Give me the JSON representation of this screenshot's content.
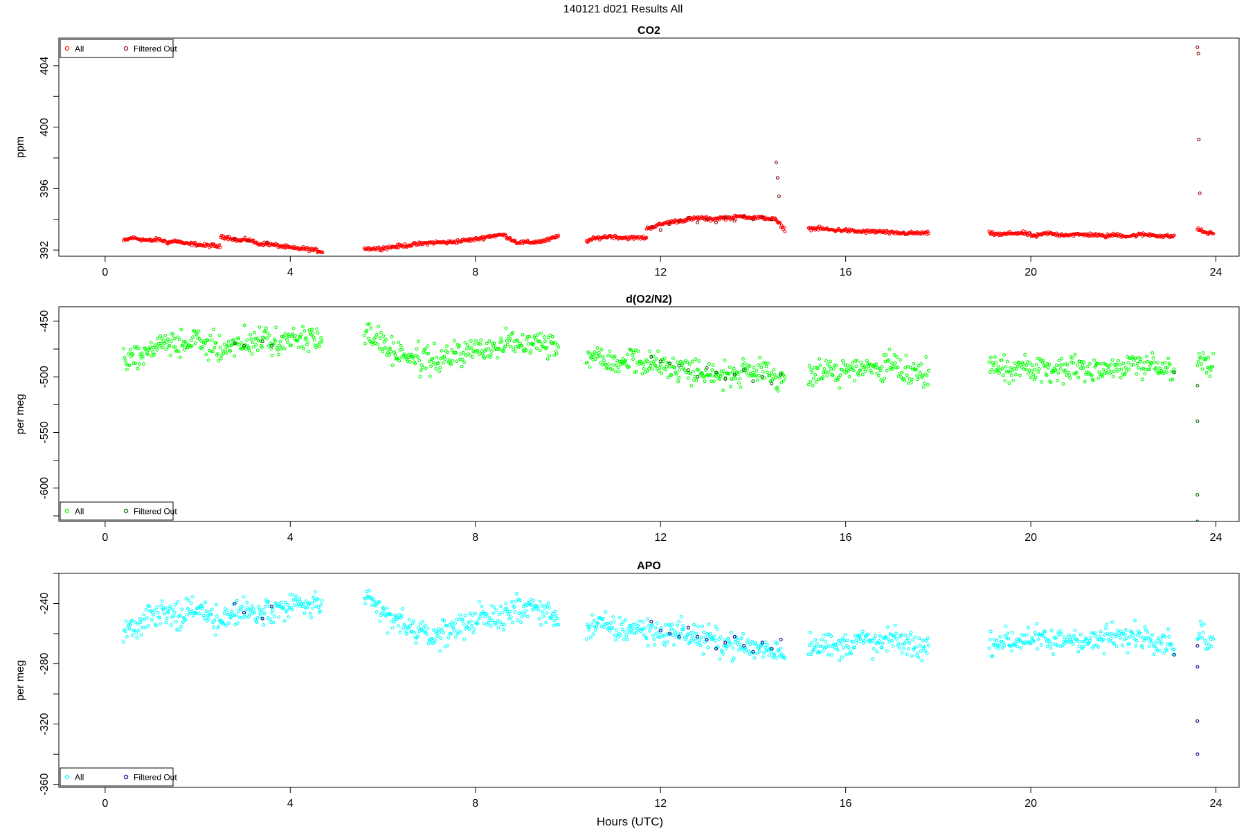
{
  "page_title": "140121   d021   Results All",
  "x_axis_label": "Hours (UTC)",
  "colors": {
    "co2_all": "#ff0000",
    "co2_filtered": "#8b0000",
    "o2_all": "#00ff00",
    "o2_filtered": "#006400",
    "apo_all": "#00ffff",
    "apo_filtered": "#00008b"
  },
  "chart_data": [
    {
      "type": "scatter",
      "title": "CO2",
      "ylabel": "ppm",
      "xlim": [
        -1,
        24.5
      ],
      "ylim": [
        391.6,
        405.8
      ],
      "x_ticks": [
        0,
        4,
        8,
        12,
        16,
        20,
        24
      ],
      "y_ticks": [
        392,
        396,
        400,
        404
      ],
      "legend_position": "top-left",
      "legend": [
        "All",
        "Filtered Out"
      ],
      "series": [
        {
          "name": "All",
          "segments": [
            {
              "x_start": 0.4,
              "x_end": 2.5,
              "y": [
                392.6,
                392.8,
                392.7,
                392.6,
                392.7,
                392.5,
                392.6,
                392.4,
                392.4,
                392.3,
                392.3,
                392.2
              ]
            },
            {
              "x_start": 2.5,
              "x_end": 4.7,
              "y": [
                392.9,
                392.8,
                392.6,
                392.7,
                392.4,
                392.4,
                392.3,
                392.2,
                392.1,
                392.1,
                392.0,
                391.9
              ]
            },
            {
              "x_start": 5.6,
              "x_end": 9.8,
              "y": [
                392.1,
                392.1,
                392.2,
                392.3,
                392.4,
                392.5,
                392.5,
                392.6,
                392.7,
                392.9,
                393.0,
                392.5,
                392.5,
                392.6,
                392.9
              ]
            },
            {
              "x_start": 10.4,
              "x_end": 11.7,
              "y": [
                392.6,
                392.8,
                392.9,
                392.8,
                392.8,
                392.8
              ]
            },
            {
              "x_start": 11.7,
              "x_end": 14.7,
              "y": [
                393.4,
                393.6,
                393.8,
                393.9,
                394.0,
                394.1,
                394.0,
                394.1,
                394.1,
                394.2,
                394.1,
                394.1,
                394.0,
                393.3
              ]
            },
            {
              "x_start": 15.2,
              "x_end": 17.8,
              "y": [
                393.4,
                393.4,
                393.3,
                393.3,
                393.2,
                393.2,
                393.2,
                393.1,
                393.1,
                393.1,
                393.1
              ]
            },
            {
              "x_start": 19.1,
              "x_end": 23.1,
              "y": [
                393.1,
                393.0,
                393.1,
                393.1,
                392.9,
                393.1,
                393.0,
                393.0,
                393.0,
                393.0,
                392.9,
                393.0,
                392.9,
                393.0,
                393.0,
                392.9,
                392.9
              ]
            },
            {
              "x_start": 23.6,
              "x_end": 23.95,
              "y": [
                393.4,
                393.2,
                393.1,
                393.1
              ]
            }
          ]
        },
        {
          "name": "Filtered Out",
          "points": [
            [
              11.8,
              393.5
            ],
            [
              12.0,
              393.3
            ],
            [
              12.2,
              393.7
            ],
            [
              12.4,
              393.9
            ],
            [
              12.6,
              394.1
            ],
            [
              12.8,
              393.8
            ],
            [
              13.0,
              394.0
            ],
            [
              13.2,
              393.8
            ],
            [
              13.4,
              394.1
            ],
            [
              13.6,
              393.9
            ],
            [
              13.8,
              394.2
            ],
            [
              14.0,
              394.0
            ],
            [
              14.2,
              394.1
            ],
            [
              14.4,
              394.0
            ],
            [
              2.8,
              392.7
            ],
            [
              3.1,
              392.6
            ],
            [
              3.5,
              392.5
            ],
            [
              14.5,
              397.7
            ],
            [
              14.53,
              396.7
            ],
            [
              14.56,
              395.5
            ],
            [
              23.6,
              405.2
            ],
            [
              23.62,
              404.8
            ],
            [
              23.63,
              399.2
            ],
            [
              23.65,
              395.7
            ]
          ]
        }
      ]
    },
    {
      "type": "scatter",
      "title": "d(O2/N2)",
      "ylabel": "per meg",
      "xlim": [
        -1,
        24.5
      ],
      "ylim": [
        -630,
        -437
      ],
      "x_ticks": [
        0,
        4,
        8,
        12,
        16,
        20,
        24
      ],
      "y_ticks": [
        -600,
        -550,
        -500,
        -450
      ],
      "legend_position": "bottom-left",
      "legend": [
        "All",
        "Filtered Out"
      ],
      "series": [
        {
          "name": "All",
          "segments": [
            {
              "x_start": 0.4,
              "x_end": 4.7,
              "y": [
                -485,
                -480,
                -476,
                -470,
                -472,
                -468,
                -470,
                -475,
                -472,
                -468,
                -470,
                -466,
                -468,
                -465,
                -467,
                -464
              ]
            },
            {
              "x_start": 5.6,
              "x_end": 9.8,
              "y": [
                -460,
                -466,
                -475,
                -480,
                -484,
                -486,
                -484,
                -480,
                -478,
                -476,
                -474,
                -470,
                -468,
                -466,
                -470,
                -474
              ]
            },
            {
              "x_start": 10.4,
              "x_end": 14.7,
              "y": [
                -480,
                -482,
                -486,
                -484,
                -488,
                -490,
                -492,
                -494,
                -496,
                -498,
                -498,
                -496,
                -500,
                -500
              ]
            },
            {
              "x_start": 15.2,
              "x_end": 17.8,
              "y": [
                -498,
                -496,
                -494,
                -496,
                -492,
                -494,
                -490,
                -494,
                -496,
                -498
              ]
            },
            {
              "x_start": 19.1,
              "x_end": 23.1,
              "y": [
                -494,
                -492,
                -494,
                -490,
                -492,
                -494,
                -492,
                -490,
                -494,
                -492,
                -490,
                -492,
                -488,
                -490,
                -492,
                -494
              ]
            },
            {
              "x_start": 23.6,
              "x_end": 23.95,
              "y": [
                -490,
                -480,
                -495,
                -488
              ]
            }
          ]
        },
        {
          "name": "Filtered Out",
          "points": [
            [
              2.8,
              -470
            ],
            [
              3.0,
              -472
            ],
            [
              3.4,
              -468
            ],
            [
              3.6,
              -472
            ],
            [
              11.8,
              -482
            ],
            [
              12.0,
              -486
            ],
            [
              12.2,
              -488
            ],
            [
              12.4,
              -490
            ],
            [
              12.6,
              -494
            ],
            [
              12.8,
              -500
            ],
            [
              13.0,
              -492
            ],
            [
              13.2,
              -496
            ],
            [
              13.4,
              -502
            ],
            [
              13.6,
              -498
            ],
            [
              13.8,
              -494
            ],
            [
              14.0,
              -504
            ],
            [
              14.2,
              -500
            ],
            [
              14.4,
              -506
            ],
            [
              14.6,
              -498
            ],
            [
              23.1,
              -496
            ],
            [
              23.6,
              -508
            ],
            [
              23.6,
              -540
            ],
            [
              23.6,
              -606
            ],
            [
              23.6,
              -630
            ]
          ]
        }
      ]
    },
    {
      "type": "scatter",
      "title": "APO",
      "ylabel": "per meg",
      "xlim": [
        -1,
        24.5
      ],
      "ylim": [
        -362,
        -220
      ],
      "x_ticks": [
        0,
        4,
        8,
        12,
        16,
        20,
        24
      ],
      "y_ticks": [
        -360,
        -320,
        -280,
        -240
      ],
      "legend_position": "bottom-left",
      "legend": [
        "All",
        "Filtered Out"
      ],
      "series": [
        {
          "name": "All",
          "segments": [
            {
              "x_start": 0.4,
              "x_end": 4.7,
              "y": [
                -258,
                -254,
                -250,
                -246,
                -248,
                -244,
                -246,
                -250,
                -248,
                -244,
                -246,
                -242,
                -244,
                -240,
                -242,
                -240
              ]
            },
            {
              "x_start": 5.6,
              "x_end": 9.8,
              "y": [
                -238,
                -244,
                -250,
                -254,
                -258,
                -262,
                -260,
                -256,
                -252,
                -250,
                -250,
                -246,
                -244,
                -242,
                -246,
                -250
              ]
            },
            {
              "x_start": 10.4,
              "x_end": 14.7,
              "y": [
                -256,
                -254,
                -258,
                -256,
                -258,
                -260,
                -258,
                -262,
                -264,
                -266,
                -268,
                -270,
                -270,
                -272
              ]
            },
            {
              "x_start": 15.2,
              "x_end": 17.8,
              "y": [
                -268,
                -266,
                -270,
                -266,
                -264,
                -268,
                -264,
                -266,
                -268,
                -270
              ]
            },
            {
              "x_start": 19.1,
              "x_end": 23.1,
              "y": [
                -266,
                -264,
                -266,
                -262,
                -264,
                -266,
                -264,
                -262,
                -266,
                -264,
                -262,
                -264,
                -260,
                -262,
                -264,
                -266
              ]
            },
            {
              "x_start": 23.6,
              "x_end": 23.95,
              "y": [
                -265,
                -255,
                -270,
                -262
              ]
            }
          ]
        },
        {
          "name": "Filtered Out",
          "points": [
            [
              2.8,
              -240
            ],
            [
              3.0,
              -246
            ],
            [
              3.4,
              -250
            ],
            [
              3.6,
              -242
            ],
            [
              11.8,
              -252
            ],
            [
              12.0,
              -258
            ],
            [
              12.2,
              -260
            ],
            [
              12.4,
              -262
            ],
            [
              12.6,
              -256
            ],
            [
              12.8,
              -262
            ],
            [
              13.0,
              -264
            ],
            [
              13.2,
              -270
            ],
            [
              13.4,
              -266
            ],
            [
              13.6,
              -262
            ],
            [
              13.8,
              -268
            ],
            [
              14.0,
              -272
            ],
            [
              14.2,
              -266
            ],
            [
              14.4,
              -270
            ],
            [
              14.6,
              -264
            ],
            [
              23.1,
              -274
            ],
            [
              23.6,
              -268
            ],
            [
              23.6,
              -282
            ],
            [
              23.6,
              -318
            ],
            [
              23.6,
              -340
            ]
          ]
        }
      ]
    }
  ]
}
